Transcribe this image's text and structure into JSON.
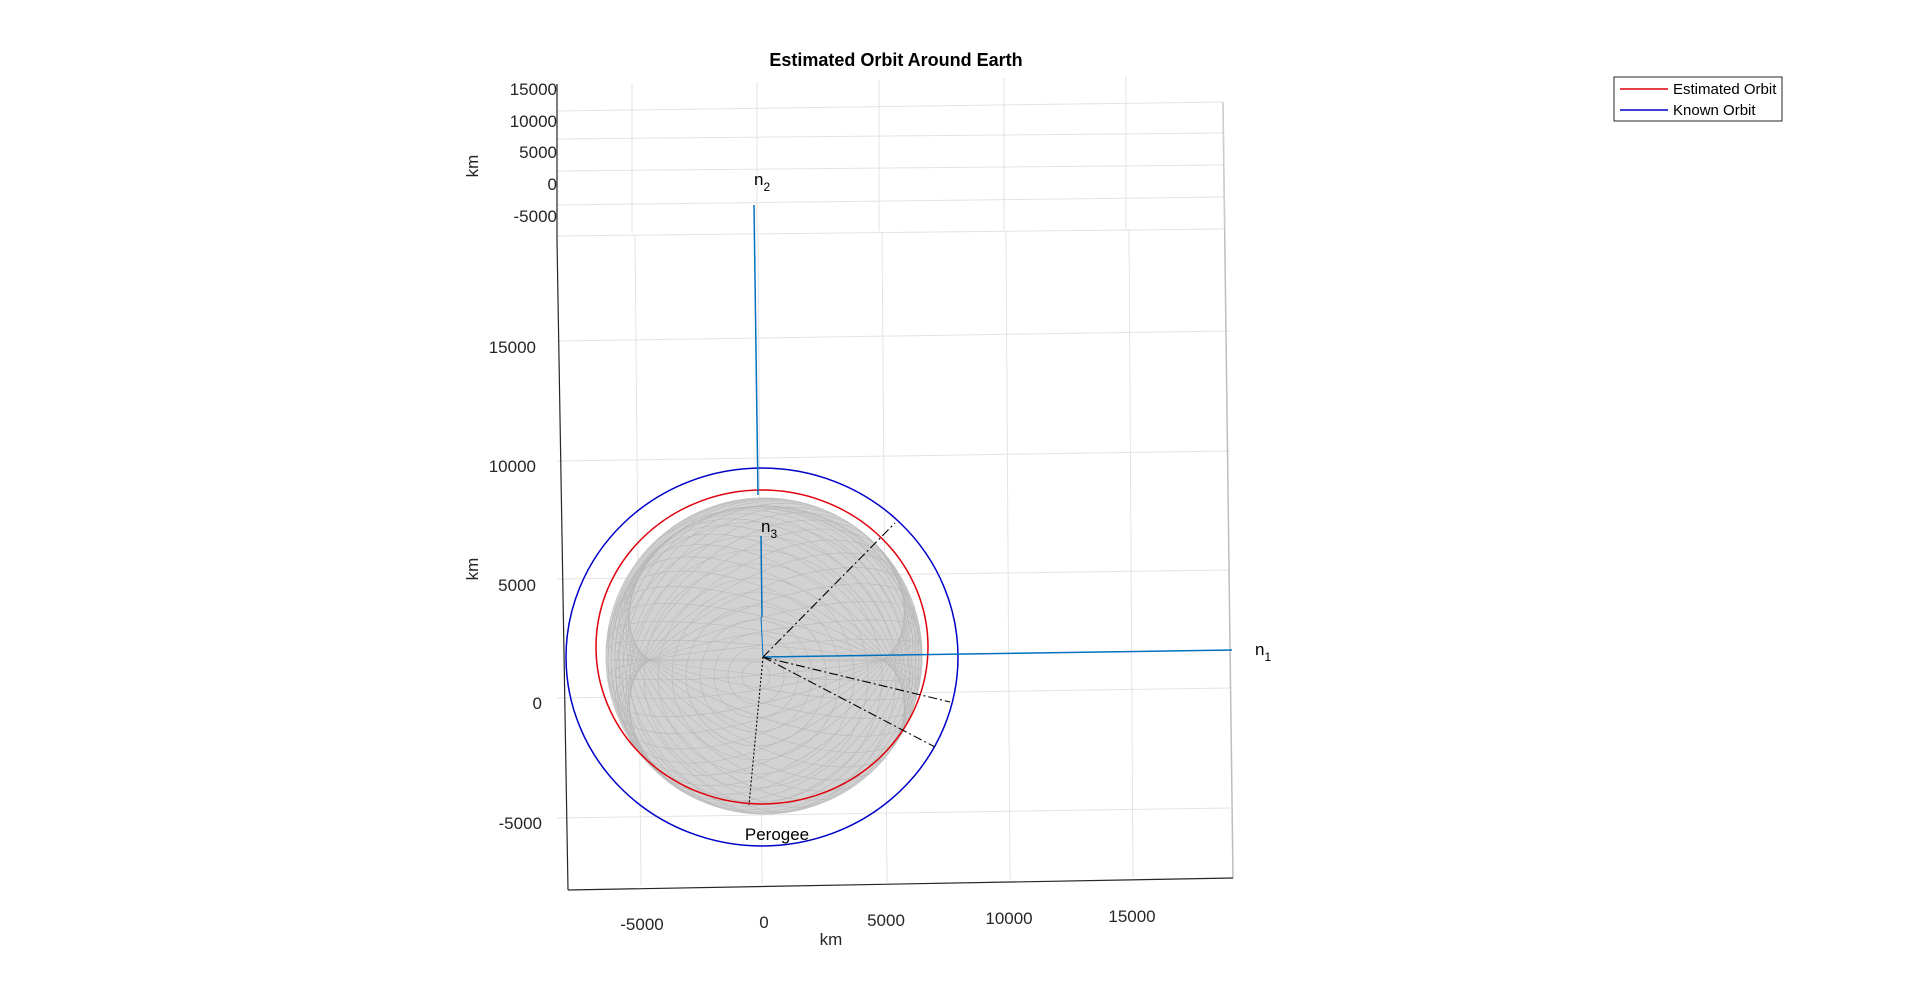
{
  "chart_data": {
    "type": "line",
    "title": "Estimated Orbit Around Earth",
    "xlabel": "km",
    "ylabel": "km",
    "zlabel": "km",
    "x_ticks": [
      "-5000",
      "0",
      "5000",
      "10000",
      "15000"
    ],
    "y_ticks": [
      "-5000",
      "0",
      "5000",
      "10000",
      "15000"
    ],
    "z_ticks": [
      "-5000",
      "0",
      "5000",
      "10000",
      "15000"
    ],
    "grid": true,
    "legend_position": "top-right",
    "series": [
      {
        "name": "Estimated Orbit",
        "color": "#e0000b",
        "semi_axis_km": 6700
      },
      {
        "name": "Known Orbit",
        "color": "#0000c8",
        "semi_axis_km": 8000
      }
    ],
    "earth_radius_km": 6378,
    "vectors": [
      {
        "label": "n",
        "subscript": "1",
        "color": "#0072bd"
      },
      {
        "label": "n",
        "subscript": "2",
        "color": "#0072bd"
      },
      {
        "label": "n",
        "subscript": "3",
        "color": "#0072bd"
      }
    ],
    "annotations": [
      "Perogee"
    ]
  }
}
